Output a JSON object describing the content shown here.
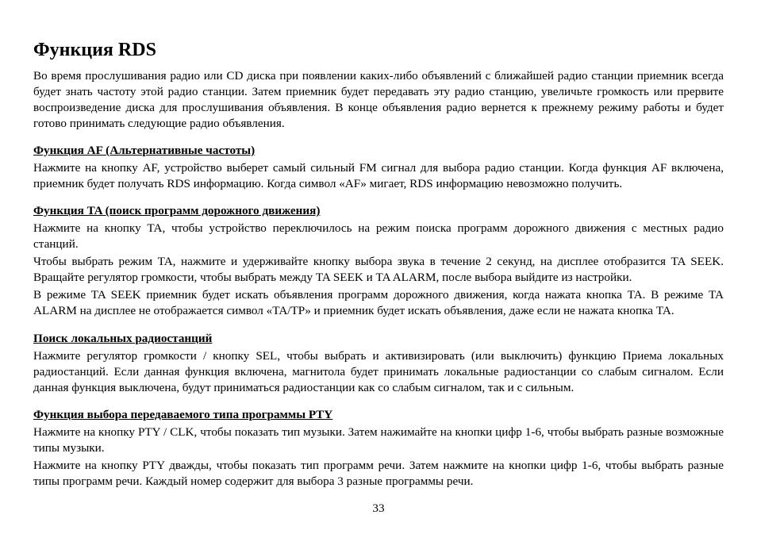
{
  "title": "Функция RDS",
  "intro": "Во время прослушивания радио или CD диска при появлении каких-либо объявлений с ближайшей радио станции приемник всегда будет знать частоту этой радио станции. Затем приемник будет передавать эту радио станцию, увеличьте громкость или прервите воспроизведение диска для прослушивания объявления. В конце объявления радио вернется к прежнему режиму работы и будет готово принимать следующие радио объявления.",
  "af_heading": "Функция AF (Альтернативные частоты)",
  "af_body": "Нажмите на кнопку AF, устройство выберет самый сильный FM сигнал для выбора радио станции. Когда функция AF включена, приемник будет получать RDS информацию. Когда символ «AF» мигает, RDS информацию невозможно получить.",
  "ta_heading": "Функция TA (поиск программ дорожного движения)",
  "ta_p1": "Нажмите на кнопку TA, чтобы устройство переключилось на режим поиска программ дорожного движения с местных радио станций.",
  "ta_p2": "Чтобы выбрать режим TA, нажмите и удерживайте кнопку выбора звука в течение 2 секунд, на дисплее отобразится TA SEEK. Вращайте регулятор громкости, чтобы выбрать между TA SEEK и TA ALARM, после выбора выйдите из настройки.",
  "ta_p3": "В режиме TA SEEK приемник будет искать объявления программ дорожного движения, когда нажата кнопка TA. В режиме TA ALARM на дисплее не отображается символ «TA/TP» и приемник будет искать объявления, даже если не нажата кнопка TA.",
  "local_heading": "Поиск локальных радиостанций",
  "local_body": "Нажмите регулятор громкости / кнопку SEL, чтобы выбрать и активизировать (или выключить) функцию Приема локальных радиостанций. Если данная функция включена, магнитола будет принимать локальные радиостанции со слабым сигналом. Если данная функция выключена, будут приниматься радиостанции как со слабым сигналом, так и с сильным.",
  "pty_heading": "Функция выбора передаваемого типа программы PTY",
  "pty_p1": "Нажмите на кнопку PTY / CLK, чтобы показать тип музыки. Затем нажимайте на кнопки цифр 1-6, чтобы выбрать разные возможные типы музыки.",
  "pty_p2": "Нажмите на кнопку PTY дважды, чтобы показать тип программ речи. Затем нажмите на кнопки цифр 1-6, чтобы выбрать разные типы программ речи. Каждый номер содержит для выбора 3 разные программы речи.",
  "page_number": "33"
}
